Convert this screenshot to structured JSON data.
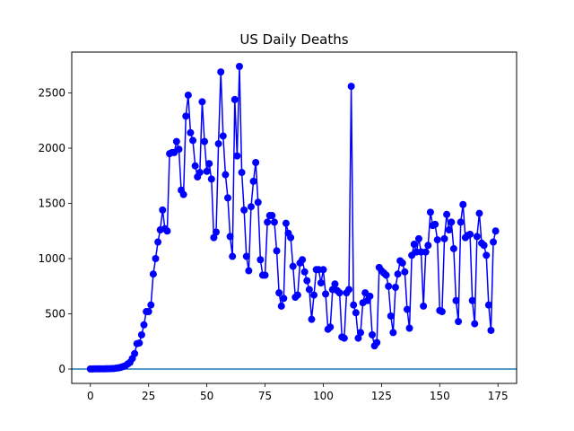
{
  "chart_data": {
    "type": "line",
    "title": "US Daily Deaths",
    "xlabel": "",
    "ylabel": "",
    "xlim": [
      -8,
      183
    ],
    "ylim": [
      -130,
      2870
    ],
    "x_ticks": [
      0,
      25,
      50,
      75,
      100,
      125,
      150,
      175
    ],
    "y_ticks": [
      0,
      500,
      1000,
      1500,
      2000,
      2500
    ],
    "grid": false,
    "line_color": "#0000ff",
    "hline": {
      "y": 0,
      "color": "#1f77b4"
    },
    "series": [
      {
        "values": [
          1,
          1,
          2,
          2,
          2,
          2,
          2,
          3,
          3,
          4,
          5,
          8,
          10,
          15,
          22,
          30,
          45,
          60,
          95,
          140,
          230,
          235,
          310,
          400,
          520,
          520,
          580,
          860,
          1000,
          1150,
          1260,
          1440,
          1270,
          1250,
          1950,
          1960,
          1960,
          2060,
          1990,
          1620,
          1580,
          2290,
          2480,
          2140,
          2070,
          1840,
          1740,
          1780,
          2420,
          2060,
          1790,
          1860,
          1720,
          1190,
          1240,
          2040,
          2690,
          2110,
          1760,
          1550,
          1200,
          1020,
          2440,
          1930,
          2740,
          1780,
          1440,
          1020,
          890,
          1470,
          1700,
          1870,
          1510,
          990,
          850,
          850,
          1330,
          1390,
          1390,
          1330,
          1070,
          690,
          570,
          640,
          1320,
          1230,
          1190,
          930,
          650,
          670,
          960,
          990,
          880,
          800,
          720,
          450,
          670,
          900,
          900,
          780,
          900,
          680,
          360,
          380,
          720,
          770,
          710,
          690,
          290,
          280,
          690,
          720,
          2560,
          580,
          510,
          280,
          330,
          600,
          690,
          620,
          660,
          310,
          210,
          240,
          920,
          890,
          870,
          850,
          750,
          480,
          330,
          740,
          860,
          980,
          960,
          880,
          540,
          370,
          1030,
          1130,
          1060,
          1180,
          1060,
          570,
          1060,
          1120,
          1420,
          1300,
          1310,
          1170,
          530,
          520,
          1180,
          1400,
          1260,
          1330,
          1090,
          620,
          430,
          1330,
          1490,
          1190,
          1210,
          1220,
          620,
          410,
          1200,
          1410,
          1140,
          1120,
          1030,
          580,
          350,
          1150,
          1250
        ]
      }
    ]
  }
}
